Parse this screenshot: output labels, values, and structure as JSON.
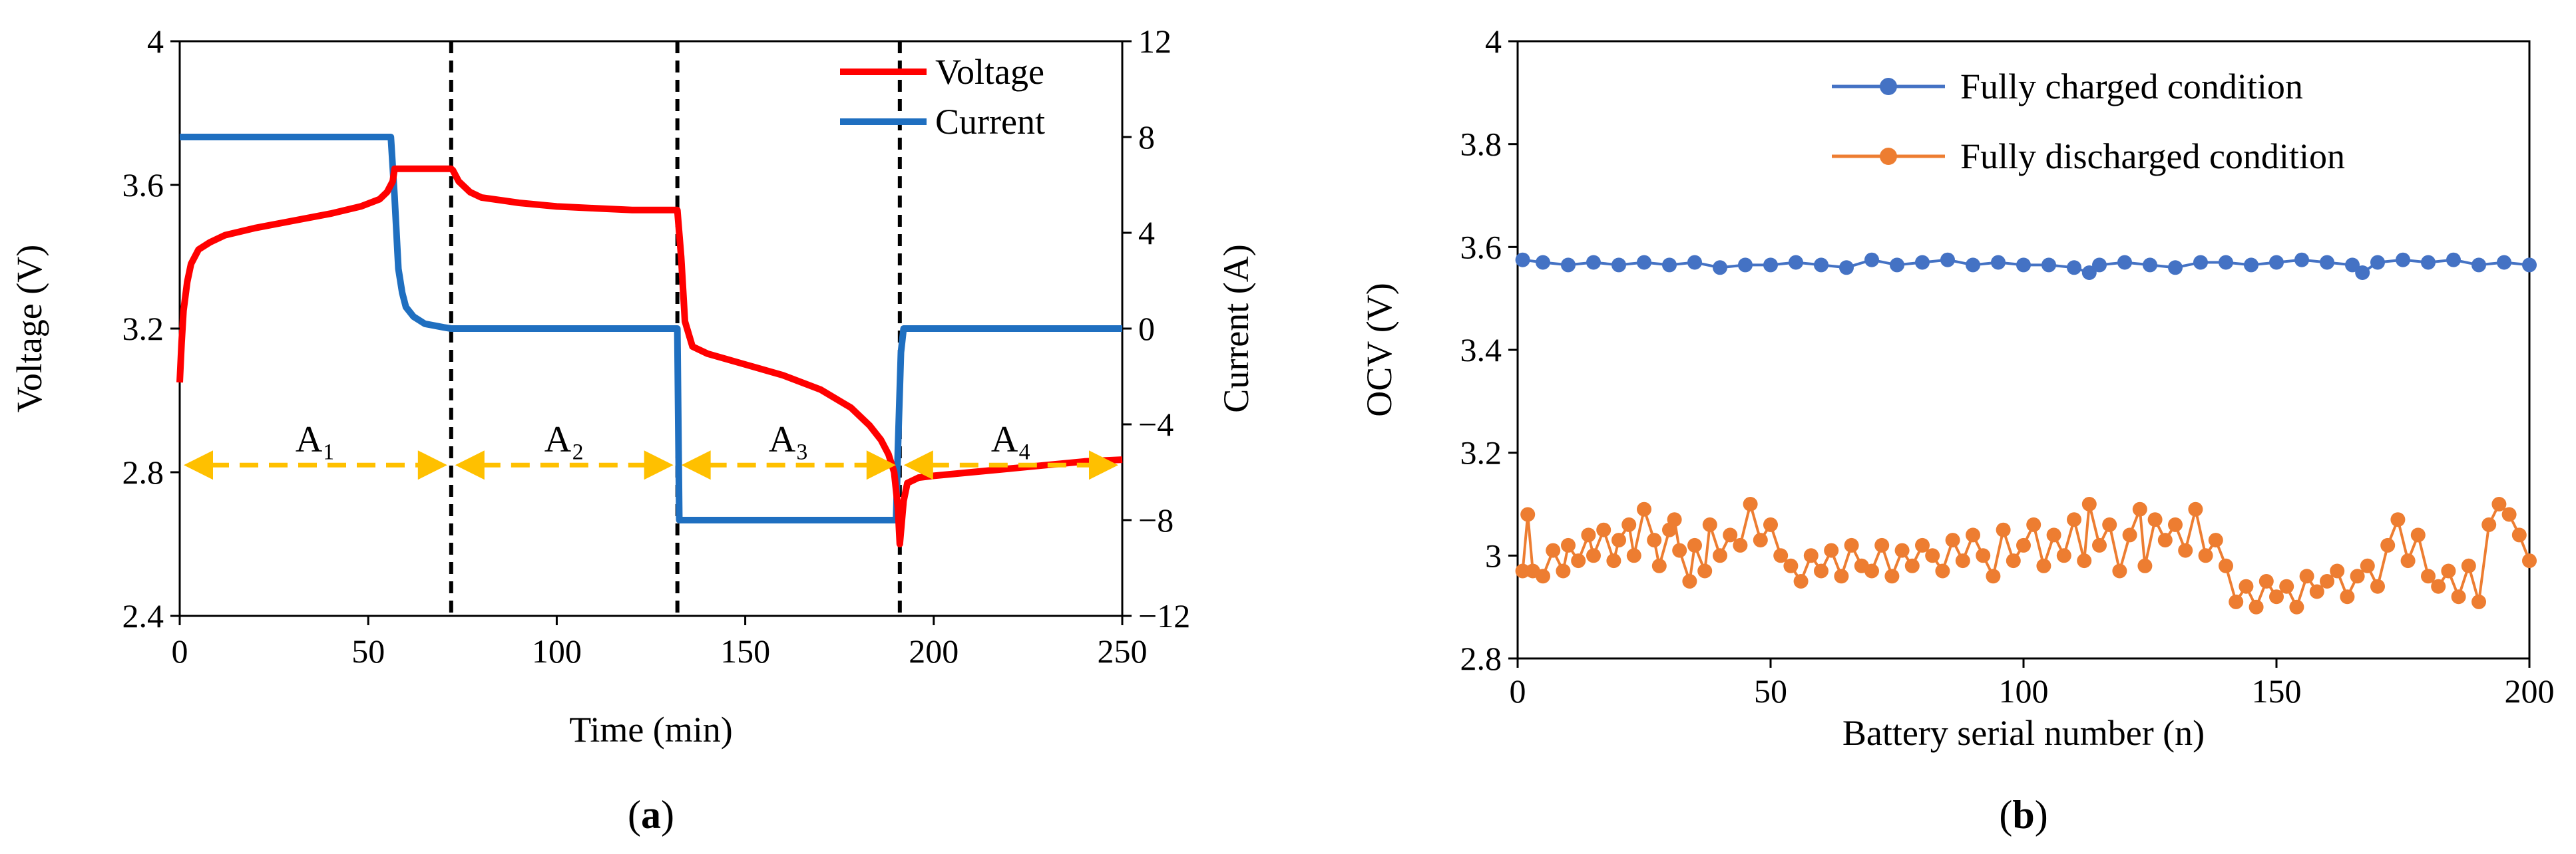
{
  "chart_data": [
    {
      "panel_label": "(a)",
      "type": "line",
      "x_label": "Time (min)",
      "y_label": "Voltage (V)",
      "y2_label": "Current (A)",
      "xlim": [
        0,
        250
      ],
      "ylim": [
        2.4,
        4.0
      ],
      "y2lim": [
        -12,
        12
      ],
      "x_ticks": [
        "0",
        "50",
        "100",
        "150",
        "200",
        "250"
      ],
      "y_ticks": [
        "2.4",
        "2.8",
        "3.2",
        "3.6",
        "4"
      ],
      "y2_ticks": [
        "−12",
        "−8",
        "−4",
        "0",
        "4",
        "8",
        "12"
      ],
      "series": [
        {
          "name": "Voltage",
          "axis": "left",
          "color": "#ff0000",
          "x": [
            0,
            0.5,
            1,
            2,
            3,
            5,
            8,
            12,
            20,
            30,
            40,
            48,
            53,
            55,
            56.5,
            57,
            58,
            72,
            72.5,
            74,
            77,
            80,
            90,
            100,
            110,
            120,
            130,
            132,
            133,
            134,
            136,
            140,
            150,
            160,
            170,
            178,
            183,
            186,
            188,
            189.5,
            190.5,
            191,
            192,
            193,
            196,
            200,
            210,
            220,
            230,
            240,
            250
          ],
          "values": [
            3.05,
            3.16,
            3.25,
            3.33,
            3.38,
            3.42,
            3.44,
            3.46,
            3.48,
            3.5,
            3.52,
            3.54,
            3.56,
            3.58,
            3.61,
            3.645,
            3.645,
            3.645,
            3.64,
            3.61,
            3.58,
            3.565,
            3.55,
            3.54,
            3.535,
            3.53,
            3.53,
            3.53,
            3.4,
            3.22,
            3.15,
            3.13,
            3.1,
            3.07,
            3.03,
            2.98,
            2.93,
            2.89,
            2.85,
            2.8,
            2.7,
            2.6,
            2.72,
            2.77,
            2.785,
            2.79,
            2.8,
            2.81,
            2.82,
            2.83,
            2.835
          ]
        },
        {
          "name": "Current",
          "axis": "right",
          "color": "#1f6fc0",
          "x": [
            0,
            56,
            57,
            58,
            59,
            60,
            62,
            65,
            70,
            72,
            132,
            132.5,
            133,
            190,
            190.5,
            191.3,
            192,
            250
          ],
          "values": [
            8,
            8,
            5.5,
            2.5,
            1.5,
            0.9,
            0.5,
            0.2,
            0.05,
            0,
            0,
            -8,
            -8,
            -8,
            -5,
            -1,
            0,
            0
          ]
        }
      ],
      "vlines_x": [
        72,
        132,
        191
      ],
      "segments": [
        {
          "label": "A₁",
          "x_start": 0,
          "x_end": 72,
          "y": 2.82
        },
        {
          "label": "A₂",
          "x_start": 72,
          "x_end": 132,
          "y": 2.82
        },
        {
          "label": "A₃",
          "x_start": 132,
          "x_end": 191,
          "y": 2.82
        },
        {
          "label": "A₄",
          "x_start": 191,
          "x_end": 250,
          "y": 2.82
        }
      ],
      "legend": [
        "Voltage",
        "Current"
      ],
      "legend_position": "top-right",
      "annotation_color": "#ffc000"
    },
    {
      "panel_label": "(b)",
      "type": "line",
      "x_label": "Battery serial number (n)",
      "y_label": "OCV (V)",
      "xlim": [
        0,
        200
      ],
      "ylim": [
        2.8,
        4.0
      ],
      "x_ticks": [
        "0",
        "50",
        "100",
        "150",
        "200"
      ],
      "y_ticks": [
        "2.8",
        "3",
        "3.2",
        "3.4",
        "3.6",
        "3.8",
        "4"
      ],
      "legend": [
        "Fully charged condition",
        "Fully discharged condition"
      ],
      "legend_position": "top-right",
      "series": [
        {
          "name": "Fully charged condition",
          "color": "#4472c4",
          "x": [
            1,
            5,
            10,
            15,
            20,
            25,
            30,
            35,
            40,
            45,
            50,
            55,
            60,
            65,
            70,
            75,
            80,
            85,
            90,
            95,
            100,
            105,
            110,
            113,
            115,
            120,
            125,
            130,
            135,
            140,
            145,
            150,
            155,
            160,
            165,
            167,
            170,
            175,
            180,
            185,
            190,
            195,
            200
          ],
          "values": [
            3.575,
            3.57,
            3.565,
            3.57,
            3.565,
            3.57,
            3.565,
            3.57,
            3.56,
            3.565,
            3.565,
            3.57,
            3.565,
            3.56,
            3.575,
            3.565,
            3.57,
            3.575,
            3.565,
            3.57,
            3.565,
            3.565,
            3.56,
            3.55,
            3.565,
            3.57,
            3.565,
            3.56,
            3.57,
            3.57,
            3.565,
            3.57,
            3.575,
            3.57,
            3.565,
            3.55,
            3.57,
            3.575,
            3.57,
            3.575,
            3.565,
            3.57,
            3.565
          ]
        },
        {
          "name": "Fully discharged condition",
          "color": "#ed7d31",
          "x": [
            1,
            2,
            3,
            5,
            7,
            9,
            10,
            12,
            14,
            15,
            17,
            19,
            20,
            22,
            23,
            25,
            27,
            28,
            30,
            31,
            32,
            34,
            35,
            37,
            38,
            40,
            42,
            44,
            46,
            48,
            50,
            52,
            54,
            56,
            58,
            60,
            62,
            64,
            66,
            68,
            70,
            72,
            74,
            76,
            78,
            80,
            82,
            84,
            86,
            88,
            90,
            92,
            94,
            96,
            98,
            100,
            102,
            104,
            106,
            108,
            110,
            112,
            113,
            115,
            117,
            119,
            121,
            123,
            124,
            126,
            128,
            130,
            132,
            134,
            136,
            138,
            140,
            142,
            144,
            146,
            148,
            150,
            152,
            154,
            156,
            158,
            160,
            162,
            164,
            166,
            168,
            170,
            172,
            174,
            176,
            178,
            180,
            182,
            184,
            186,
            188,
            190,
            192,
            194,
            196,
            198,
            200
          ],
          "values": [
            2.97,
            3.08,
            2.97,
            2.96,
            3.01,
            2.97,
            3.02,
            2.99,
            3.04,
            3.0,
            3.05,
            2.99,
            3.03,
            3.06,
            3.0,
            3.09,
            3.03,
            2.98,
            3.05,
            3.07,
            3.01,
            2.95,
            3.02,
            2.97,
            3.06,
            3.0,
            3.04,
            3.02,
            3.1,
            3.03,
            3.06,
            3.0,
            2.98,
            2.95,
            3.0,
            2.97,
            3.01,
            2.96,
            3.02,
            2.98,
            2.97,
            3.02,
            2.96,
            3.01,
            2.98,
            3.02,
            3.0,
            2.97,
            3.03,
            2.99,
            3.04,
            3.0,
            2.96,
            3.05,
            2.99,
            3.02,
            3.06,
            2.98,
            3.04,
            3.0,
            3.07,
            2.99,
            3.1,
            3.02,
            3.06,
            2.97,
            3.04,
            3.09,
            2.98,
            3.07,
            3.03,
            3.06,
            3.01,
            3.09,
            3.0,
            3.03,
            2.98,
            2.91,
            2.94,
            2.9,
            2.95,
            2.92,
            2.94,
            2.9,
            2.96,
            2.93,
            2.95,
            2.97,
            2.92,
            2.96,
            2.98,
            2.94,
            3.02,
            3.07,
            2.99,
            3.04,
            2.96,
            2.94,
            2.97,
            2.92,
            2.98,
            2.91,
            3.06,
            3.1,
            3.08,
            3.04,
            2.99
          ]
        }
      ]
    }
  ]
}
